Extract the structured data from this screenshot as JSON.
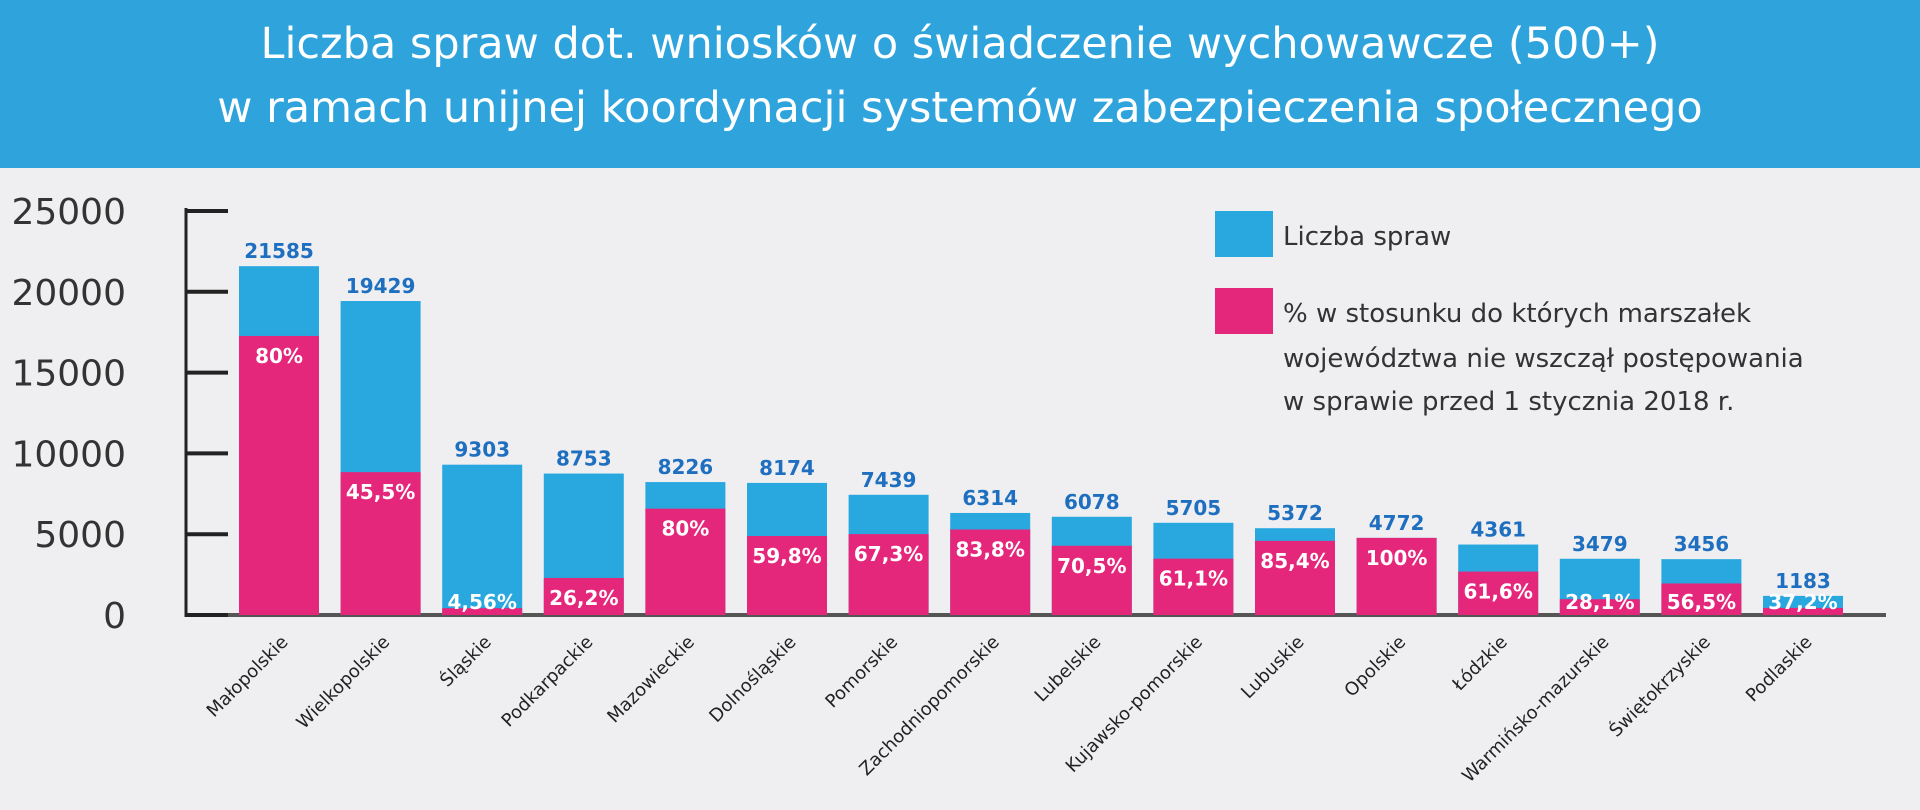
{
  "chart_data": {
    "type": "bar",
    "stacked_overlay": true,
    "title": [
      "Liczba spraw dot. wniosków o świadczenie wychowawcze (500+)",
      "w ramach unijnej koordynacji systemów zabezpieczenia społecznego"
    ],
    "xlabel": "",
    "ylabel": "",
    "ylim": [
      0,
      25000
    ],
    "yticks": [
      "0",
      "5000",
      "10000",
      "15000",
      "20000",
      "25000"
    ],
    "grid": false,
    "legend_position": "top-right",
    "categories": [
      "Małopolskie",
      "Wielkopolskie",
      "Śląskie",
      "Podkarpackie",
      "Mazowieckie",
      "Dolnośląskie",
      "Pomorskie",
      "Zachodniopomorskie",
      "Lubelskie",
      "Kujawsko-pomorskie",
      "Lubuskie",
      "Opolskie",
      "Łódzkie",
      "Warmińsko-mazurskie",
      "Świętokrzyskie",
      "Podlaskie"
    ],
    "series": [
      {
        "name": "Liczba spraw",
        "color": "#29a8e0",
        "values": [
          21585,
          19429,
          9303,
          8753,
          8226,
          8174,
          7439,
          6314,
          6078,
          5705,
          5372,
          4772,
          4361,
          3479,
          3456,
          1183
        ],
        "labels": [
          "21585",
          "19429",
          "9303",
          "8753",
          "8226",
          "8174",
          "7439",
          "6314",
          "6078",
          "5705",
          "5372",
          "4772",
          "4361",
          "3479",
          "3456",
          "1183"
        ]
      },
      {
        "name": "% w stosunku do których marszałek województwa nie wszczął postępowania w sprawie przed 1 stycznia 2018 r.",
        "color": "#e5277b",
        "name_lines": [
          "% w stosunku do których marszałek",
          "województwa nie wszczął postępowania",
          "w sprawie przed 1 stycznia 2018 r."
        ],
        "percent": [
          80,
          45.5,
          4.56,
          26.2,
          80,
          59.8,
          67.3,
          83.8,
          70.5,
          61.1,
          85.4,
          100,
          61.6,
          28.1,
          56.5,
          37.2
        ],
        "labels": [
          "80%",
          "45,5%",
          "4,56%",
          "26,2%",
          "80%",
          "59,8%",
          "67,3%",
          "83,8%",
          "70,5%",
          "61,1%",
          "85,4%",
          "100%",
          "61,6%",
          "28,1%",
          "56,5%",
          "37,2%"
        ]
      }
    ]
  }
}
